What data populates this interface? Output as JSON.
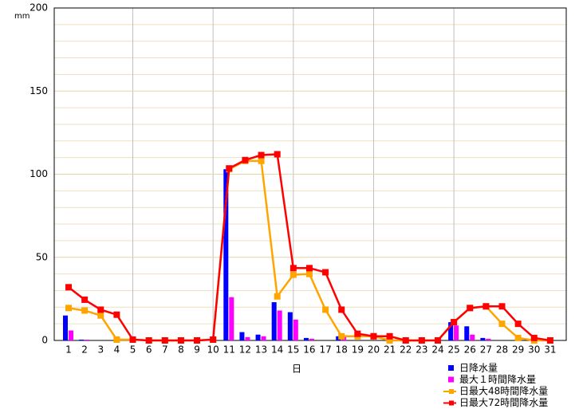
{
  "chart_data": {
    "type": "bar_line",
    "y_unit": "mm",
    "x_label": "日",
    "categories": [
      "1",
      "2",
      "3",
      "4",
      "5",
      "6",
      "7",
      "8",
      "9",
      "10",
      "11",
      "12",
      "13",
      "14",
      "15",
      "16",
      "17",
      "18",
      "19",
      "20",
      "21",
      "22",
      "23",
      "24",
      "25",
      "26",
      "27",
      "28",
      "29",
      "30",
      "31"
    ],
    "series": [
      {
        "name": "日降水量",
        "kind": "bar",
        "color": "#0000ff",
        "values": [
          15,
          0.5,
          0,
          0,
          0,
          0,
          0,
          0,
          0,
          0,
          103,
          5,
          3.5,
          23,
          17,
          1.5,
          0,
          2.5,
          0,
          0,
          0,
          0,
          0,
          0,
          11,
          8.5,
          1.5,
          0,
          0,
          0,
          0
        ]
      },
      {
        "name": "最大１時間降水量",
        "kind": "bar",
        "color": "#ff00ff",
        "values": [
          6,
          0.5,
          0,
          0,
          0,
          0,
          0,
          0,
          0,
          0,
          26,
          2,
          2.5,
          18,
          12.5,
          1,
          0,
          2.5,
          0,
          0,
          0,
          0,
          0,
          0,
          9,
          3.5,
          1,
          0,
          0,
          0,
          0
        ]
      },
      {
        "name": "日最大48時間降水量",
        "kind": "line",
        "color": "#ffa500",
        "values": [
          19.5,
          18,
          15,
          0.5,
          0.5,
          0,
          0,
          0,
          0,
          0.5,
          103,
          108,
          108,
          26.5,
          39.5,
          40,
          18.5,
          2.5,
          2.5,
          2.5,
          0,
          0,
          0,
          0,
          11,
          19.5,
          20.5,
          10,
          1.5,
          0,
          0
        ]
      },
      {
        "name": "日最大72時間降水量",
        "kind": "line",
        "color": "#ff0000",
        "values": [
          32,
          24.5,
          18.5,
          15.5,
          0.5,
          0,
          0,
          0,
          0,
          0.5,
          103.5,
          108.5,
          111.5,
          112,
          43.5,
          43.5,
          41,
          18.5,
          4,
          2.5,
          2.5,
          0,
          0,
          0,
          11,
          19.5,
          20.5,
          20.5,
          10,
          1.5,
          0
        ]
      }
    ],
    "ylim": [
      0,
      200
    ],
    "yticks": [
      0,
      50,
      100,
      150,
      200
    ],
    "minor_yticks": [
      10,
      20,
      30,
      40,
      60,
      70,
      80,
      90,
      110,
      120,
      130,
      140,
      160,
      170,
      180,
      190
    ],
    "xgrid_categories": [
      4,
      9,
      14,
      19,
      24
    ],
    "grid": true
  }
}
